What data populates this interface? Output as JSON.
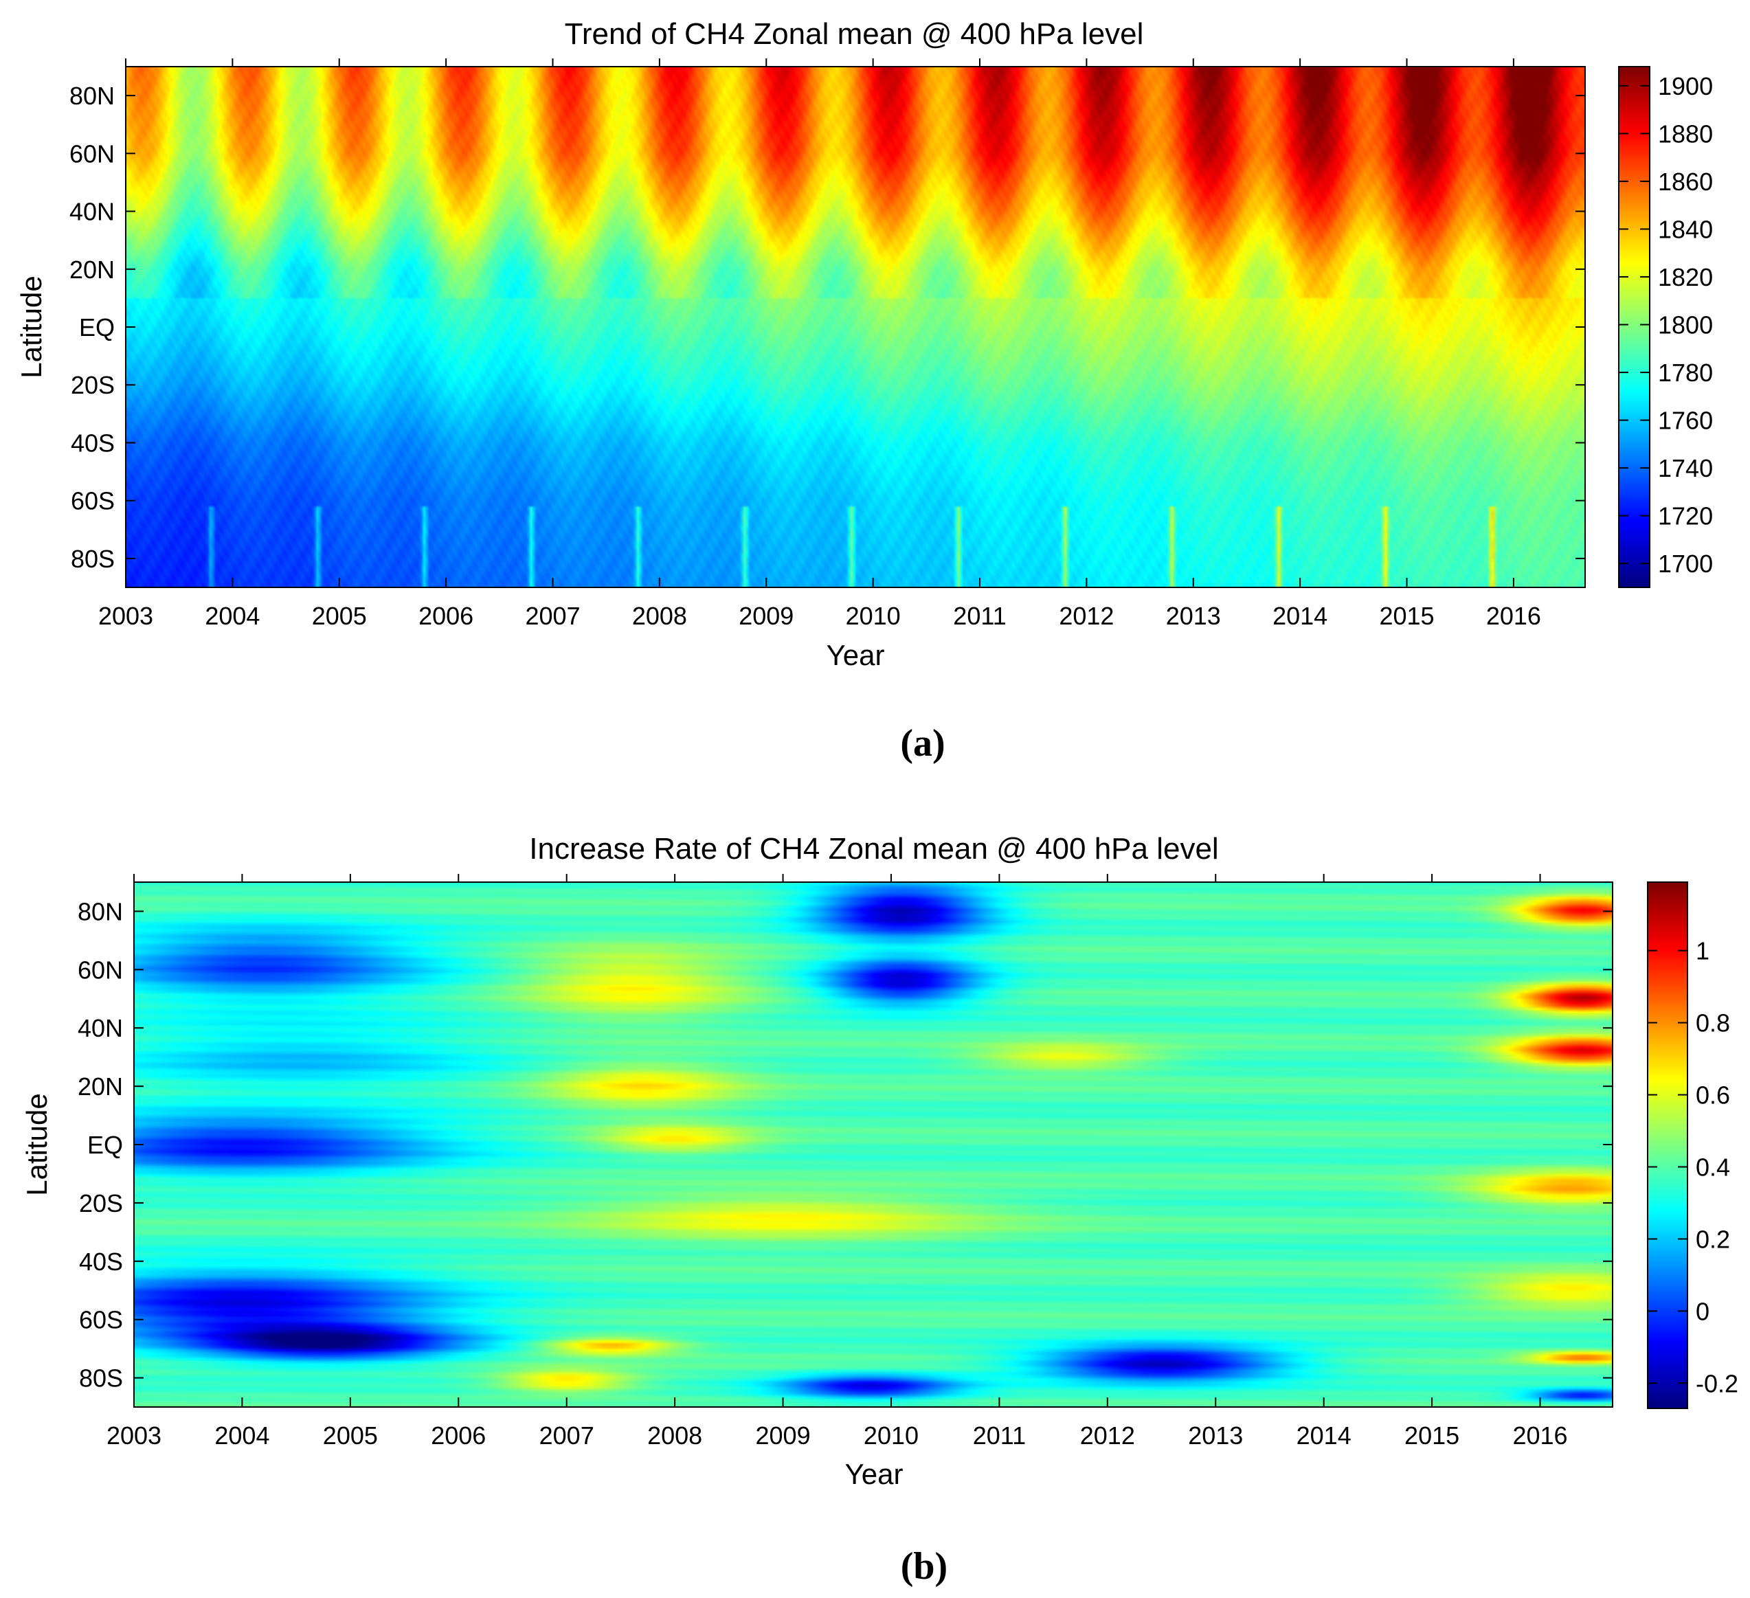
{
  "chart_data": [
    {
      "type": "heatmap",
      "panel_label": "(a)",
      "title": "Trend of CH4 Zonal mean @ 400 hPa level",
      "xlabel": "Year",
      "ylabel": "Latitude",
      "x_ticks": [
        "2003",
        "2004",
        "2005",
        "2006",
        "2007",
        "2008",
        "2009",
        "2010",
        "2011",
        "2012",
        "2013",
        "2014",
        "2015",
        "2016"
      ],
      "xlim": [
        2003,
        2016.67
      ],
      "y_ticks": [
        "80N",
        "60N",
        "40N",
        "20N",
        "EQ",
        "20S",
        "40S",
        "60S",
        "80S"
      ],
      "y_tick_values": [
        80,
        60,
        40,
        20,
        0,
        -20,
        -40,
        -60,
        -80
      ],
      "ylim": [
        -90,
        90
      ],
      "colorbar_ticks": [
        "1900",
        "1880",
        "1860",
        "1840",
        "1820",
        "1800",
        "1780",
        "1760",
        "1740",
        "1720",
        "1700"
      ],
      "colorbar_tick_values": [
        1900,
        1880,
        1860,
        1840,
        1820,
        1800,
        1780,
        1760,
        1740,
        1720,
        1700
      ],
      "clim": [
        1690,
        1908
      ],
      "colormap": "jet",
      "zonal_profile_start": {
        "latitudes": [
          -90,
          -60,
          -40,
          -20,
          0,
          20,
          40,
          60,
          90
        ],
        "values": [
          1722,
          1727,
          1735,
          1750,
          1762,
          1772,
          1800,
          1822,
          1830
        ]
      },
      "linear_trend_per_year": 5.0,
      "seasonal_amplitude": [
        12,
        28
      ],
      "winter_peak_month_fraction": 0.15,
      "southern_high_lat_spike": {
        "month_fraction": 0.8,
        "amplitude": 45,
        "latitude_below": -62
      }
    },
    {
      "type": "heatmap",
      "panel_label": "(b)",
      "title": "Increase Rate of CH4 Zonal mean @ 400 hPa level",
      "xlabel": "Year",
      "ylabel": "Latitude",
      "x_ticks": [
        "2003",
        "2004",
        "2005",
        "2006",
        "2007",
        "2008",
        "2009",
        "2010",
        "2011",
        "2012",
        "2013",
        "2014",
        "2015",
        "2016"
      ],
      "xlim": [
        2003,
        2016.67
      ],
      "y_ticks": [
        "80N",
        "60N",
        "40N",
        "20N",
        "EQ",
        "20S",
        "40S",
        "60S",
        "80S"
      ],
      "y_tick_values": [
        80,
        60,
        40,
        20,
        0,
        -20,
        -40,
        -60,
        -80
      ],
      "ylim": [
        -90,
        90
      ],
      "colorbar_ticks": [
        "1",
        "0.8",
        "0.6",
        "0.4",
        "0.2",
        "0",
        "-0.2"
      ],
      "colorbar_tick_values": [
        1,
        0.8,
        0.6,
        0.4,
        0.2,
        0,
        -0.2
      ],
      "clim": [
        -0.27,
        1.19
      ],
      "colormap": "jet",
      "base_value": 0.38,
      "features": [
        {
          "year": 2004.0,
          "lat": 0,
          "value": -0.45,
          "w": 1.8,
          "h": 10
        },
        {
          "year": 2004.0,
          "lat": -55,
          "value": -0.5,
          "w": 1.8,
          "h": 12
        },
        {
          "year": 2004.2,
          "lat": 62,
          "value": -0.38,
          "w": 1.5,
          "h": 12
        },
        {
          "year": 2004.8,
          "lat": -68,
          "value": -0.55,
          "w": 1.2,
          "h": 6
        },
        {
          "year": 2004.5,
          "lat": 30,
          "value": -0.18,
          "w": 1.8,
          "h": 12
        },
        {
          "year": 2007.6,
          "lat": 55,
          "value": 0.26,
          "w": 1.0,
          "h": 12
        },
        {
          "year": 2007.7,
          "lat": 20,
          "value": 0.28,
          "w": 0.9,
          "h": 8
        },
        {
          "year": 2008.0,
          "lat": 2,
          "value": 0.26,
          "w": 0.7,
          "h": 5
        },
        {
          "year": 2009.0,
          "lat": -25,
          "value": 0.25,
          "w": 1.8,
          "h": 8
        },
        {
          "year": 2007.4,
          "lat": -69,
          "value": 0.38,
          "w": 0.6,
          "h": 3
        },
        {
          "year": 2007.0,
          "lat": -81,
          "value": 0.32,
          "w": 0.6,
          "h": 4
        },
        {
          "year": 2010.1,
          "lat": 80,
          "value": -0.58,
          "w": 0.8,
          "h": 9
        },
        {
          "year": 2010.1,
          "lat": 56,
          "value": -0.52,
          "w": 0.7,
          "h": 8
        },
        {
          "year": 2011.6,
          "lat": 30,
          "value": 0.24,
          "w": 0.8,
          "h": 5
        },
        {
          "year": 2012.5,
          "lat": -75,
          "value": -0.58,
          "w": 1.1,
          "h": 6
        },
        {
          "year": 2009.8,
          "lat": -83,
          "value": -0.48,
          "w": 0.8,
          "h": 4
        },
        {
          "year": 2016.4,
          "lat": 32,
          "value": 0.65,
          "w": 0.7,
          "h": 5
        },
        {
          "year": 2016.4,
          "lat": 50,
          "value": 0.7,
          "w": 0.6,
          "h": 5
        },
        {
          "year": 2016.4,
          "lat": 80,
          "value": 0.6,
          "w": 0.6,
          "h": 5
        },
        {
          "year": 2016.3,
          "lat": -15,
          "value": 0.38,
          "w": 0.9,
          "h": 6
        },
        {
          "year": 2016.3,
          "lat": -50,
          "value": 0.3,
          "w": 0.9,
          "h": 6
        },
        {
          "year": 2016.4,
          "lat": -73,
          "value": 0.45,
          "w": 0.5,
          "h": 2
        },
        {
          "year": 2016.4,
          "lat": -86,
          "value": -0.45,
          "w": 0.5,
          "h": 2
        }
      ]
    }
  ]
}
